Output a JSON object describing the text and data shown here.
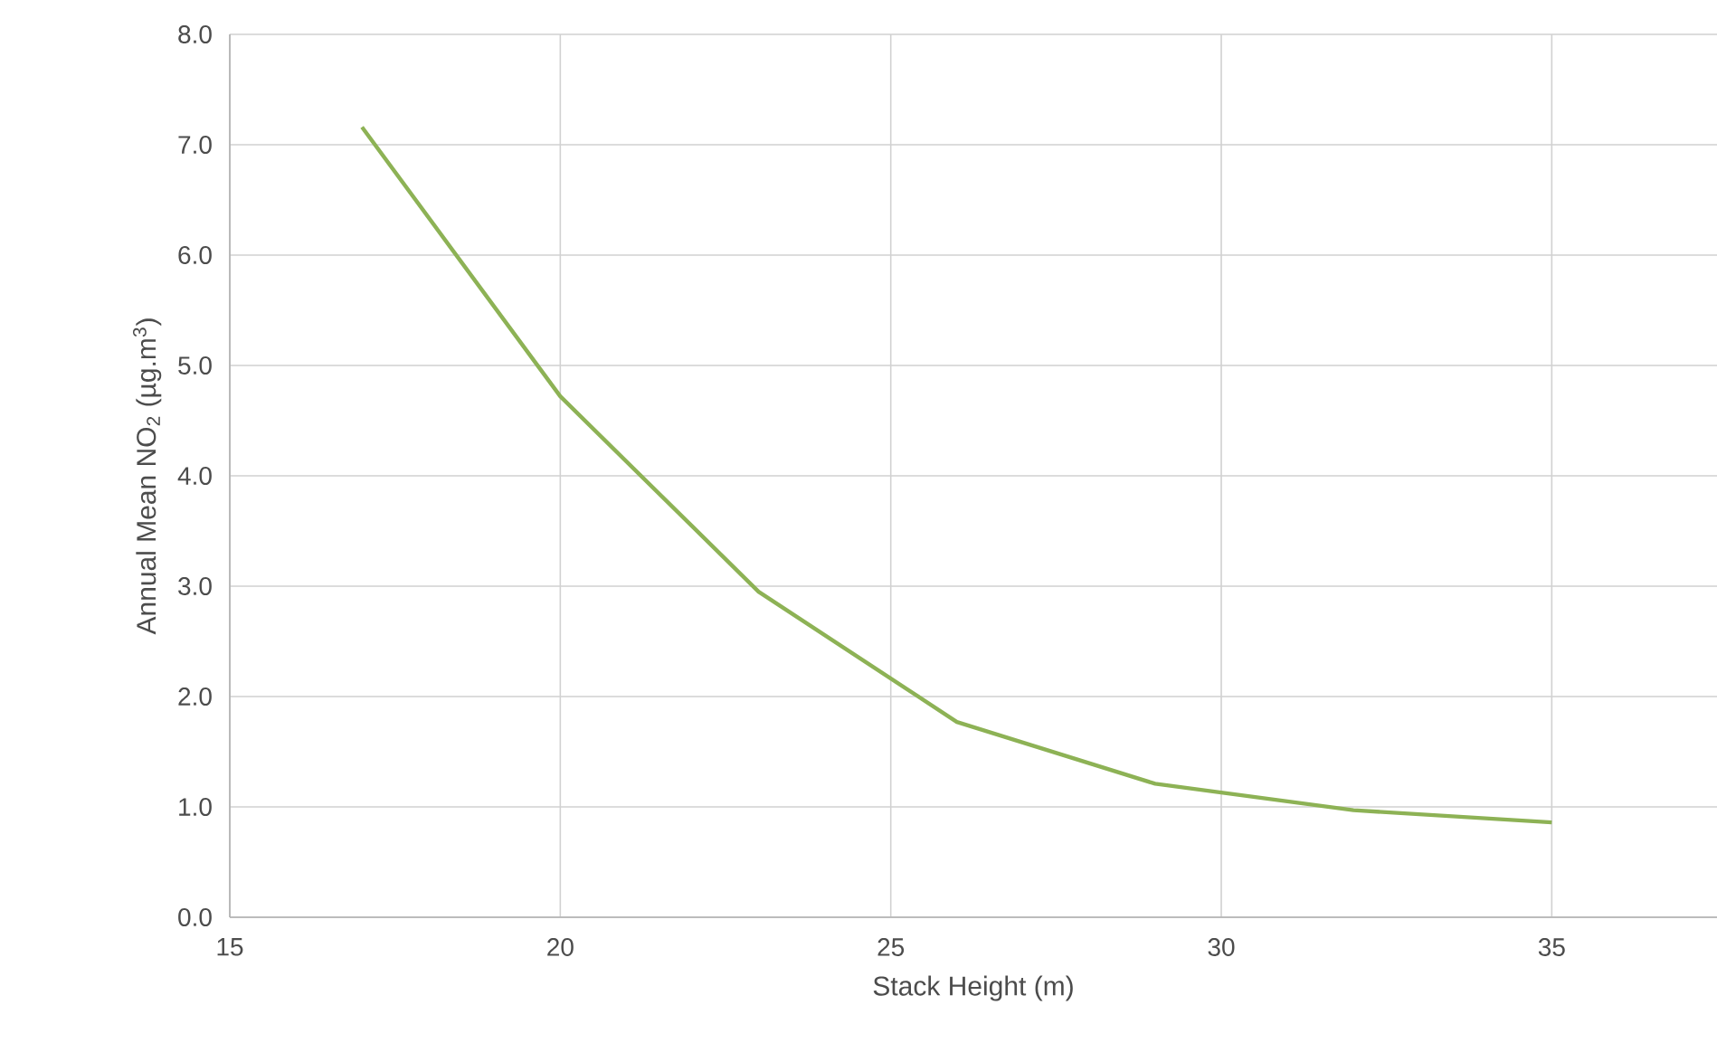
{
  "chart_data": {
    "type": "line",
    "xlabel": "Stack Height (m)",
    "ylabel": "Annual Mean NO$_{2}$ (µg.m$^{3}$)",
    "x": [
      17,
      20,
      23,
      26,
      29,
      32,
      35
    ],
    "series": [
      {
        "color": "#8db255",
        "values": [
          7.16,
          4.72,
          2.95,
          1.77,
          1.21,
          0.97,
          0.86
        ]
      }
    ],
    "xlim": [
      15,
      37.5
    ],
    "xticks": [
      15,
      20,
      25,
      30,
      35
    ],
    "ylim": [
      0,
      8
    ],
    "yticks": [
      {
        "value": 0,
        "label": "0.0"
      },
      {
        "value": 1,
        "label": "1.0"
      },
      {
        "value": 2,
        "label": "2.0"
      },
      {
        "value": 3,
        "label": "3.0"
      },
      {
        "value": 4,
        "label": "4.0"
      },
      {
        "value": 5,
        "label": "5.0"
      },
      {
        "value": 6,
        "label": "6.0"
      },
      {
        "value": 7,
        "label": "7.0"
      },
      {
        "value": 8,
        "label": "8.0"
      }
    ],
    "grid": true,
    "marker": "none",
    "line_style": "solid"
  }
}
